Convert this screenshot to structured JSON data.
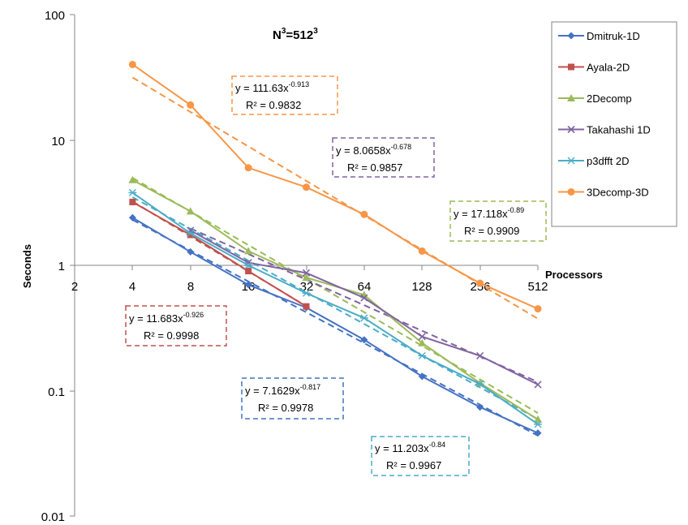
{
  "chart_data": {
    "type": "line",
    "title_base": "N",
    "title_sup1": "3",
    "title_mid": "=512",
    "title_sup2": "3",
    "xlabel": "Processors",
    "ylabel": "Seconds",
    "x_scale": "log2",
    "y_scale": "log10",
    "xlim": [
      2,
      512
    ],
    "ylim": [
      0.01,
      100
    ],
    "x_ticks": [
      "2",
      "4",
      "8",
      "16",
      "32",
      "64",
      "128",
      "256",
      "512"
    ],
    "y_ticks": [
      "0.01",
      "0.1",
      "1",
      "10",
      "100"
    ],
    "grid": false,
    "legend_position": "right",
    "series": [
      {
        "name": "Dmitruk-1D",
        "color": "#4472c4",
        "marker": "diamond",
        "x": [
          4,
          8,
          16,
          32,
          64,
          128,
          256,
          512
        ],
        "values": [
          2.4,
          1.28,
          0.7,
          0.46,
          0.255,
          0.13,
          0.074,
          0.046
        ],
        "fit": {
          "a": 7.1629,
          "b": -0.817,
          "eq_prefix": "y = 7.1629x",
          "exp": "-0.817",
          "r2": "R² = 0.9978"
        }
      },
      {
        "name": "Ayala-2D",
        "color": "#c0504d",
        "marker": "square",
        "x": [
          4,
          8,
          16,
          32
        ],
        "values": [
          3.2,
          1.75,
          0.9,
          0.47
        ],
        "fit": {
          "a": 11.683,
          "b": -0.926,
          "eq_prefix": "y = 11.683x",
          "exp": "-0.926",
          "r2": "R² = 0.9998"
        }
      },
      {
        "name": "2Decomp",
        "color": "#9bbb59",
        "marker": "triangle",
        "x": [
          4,
          8,
          16,
          32,
          64,
          128,
          256,
          512
        ],
        "values": [
          4.8,
          2.7,
          1.3,
          0.8,
          0.58,
          0.24,
          0.115,
          0.059
        ],
        "fit": {
          "a": 17.118,
          "b": -0.89,
          "eq_prefix": "y = 17.118x",
          "exp": "-0.89",
          "r2": "R² = 0.9909"
        }
      },
      {
        "name": "Takahashi 1D",
        "color": "#8064a2",
        "marker": "x",
        "x": [
          8,
          16,
          32,
          64,
          128,
          256,
          512
        ],
        "values": [
          1.9,
          1.05,
          0.87,
          0.55,
          0.27,
          0.19,
          0.112
        ],
        "fit": {
          "a": 8.0658,
          "b": -0.678,
          "eq_prefix": "y = 8.0658x",
          "exp": "-0.678",
          "r2": "R² = 0.9857"
        }
      },
      {
        "name": "p3dfft 2D",
        "color": "#4bacc6",
        "marker": "asterisk",
        "x": [
          4,
          8,
          16,
          32,
          64,
          128,
          256,
          512
        ],
        "values": [
          3.8,
          1.8,
          1.0,
          0.6,
          0.38,
          0.19,
          0.113,
          0.054
        ],
        "fit": {
          "a": 11.203,
          "b": -0.84,
          "eq_prefix": "y = 11.203x",
          "exp": "-0.84",
          "r2": "R² = 0.9967"
        }
      },
      {
        "name": "3Decomp-3D",
        "color": "#f79646",
        "marker": "circle",
        "x": [
          4,
          8,
          16,
          32,
          64,
          128,
          256,
          512
        ],
        "values": [
          40,
          19,
          6.0,
          4.2,
          2.55,
          1.3,
          0.72,
          0.45
        ],
        "fit": {
          "a": 111.63,
          "b": -0.913,
          "eq_prefix": "y = 111.63x",
          "exp": "-0.913",
          "r2": "R² = 0.9832"
        }
      }
    ]
  }
}
